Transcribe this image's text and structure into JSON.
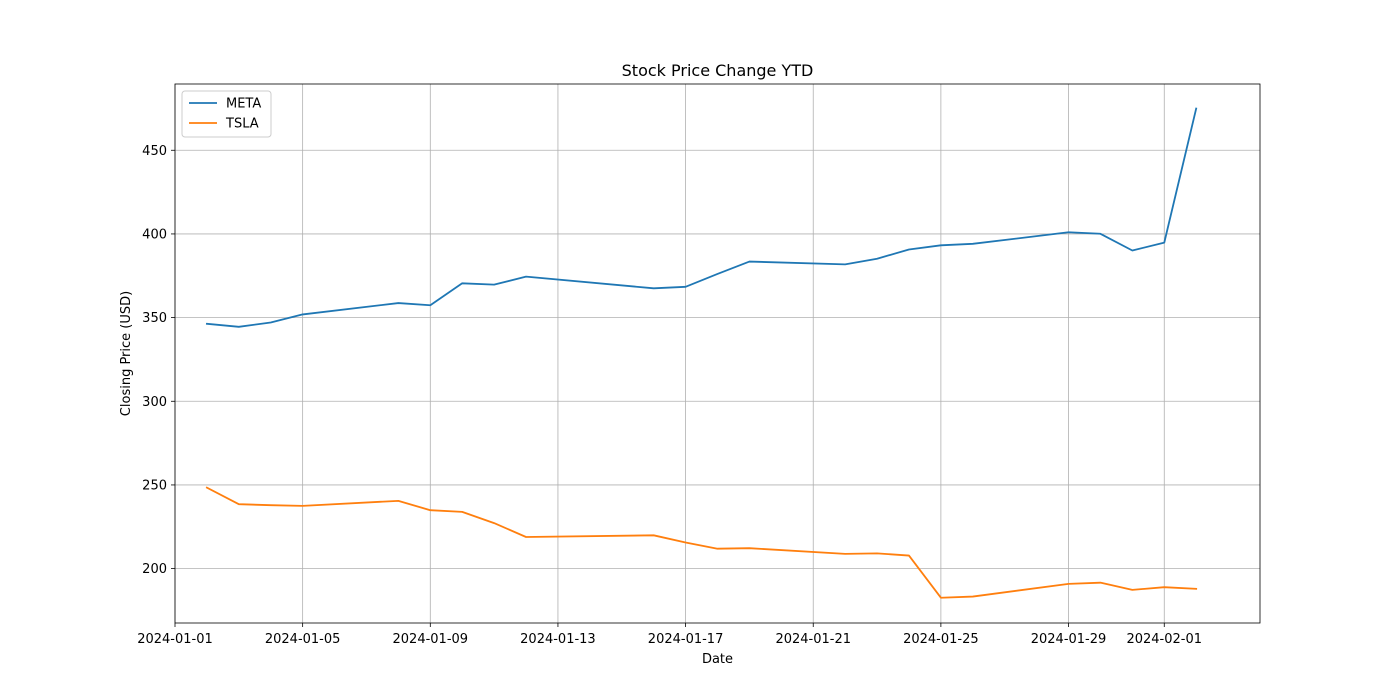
{
  "chart_data": {
    "type": "line",
    "title": "Stock Price Change YTD",
    "xlabel": "Date",
    "ylabel": "Closing Price (USD)",
    "grid": true,
    "legend_position": "top-left",
    "x_range": [
      "2024-01-01",
      "2024-02-04"
    ],
    "y_range": [
      167.5,
      489.6
    ],
    "x_ticks": [
      "2024-01-01",
      "2024-01-05",
      "2024-01-09",
      "2024-01-13",
      "2024-01-17",
      "2024-01-21",
      "2024-01-25",
      "2024-01-29",
      "2024-02-01"
    ],
    "y_ticks": [
      200,
      250,
      300,
      350,
      400,
      450
    ],
    "x": [
      "2024-01-02",
      "2024-01-03",
      "2024-01-04",
      "2024-01-05",
      "2024-01-08",
      "2024-01-09",
      "2024-01-10",
      "2024-01-11",
      "2024-01-12",
      "2024-01-16",
      "2024-01-17",
      "2024-01-18",
      "2024-01-19",
      "2024-01-22",
      "2024-01-23",
      "2024-01-24",
      "2024-01-25",
      "2024-01-26",
      "2024-01-29",
      "2024-01-30",
      "2024-01-31",
      "2024-02-01",
      "2024-02-02"
    ],
    "series": [
      {
        "name": "META",
        "color": "#1f77b4",
        "values": [
          346.3,
          344.5,
          347.1,
          351.9,
          358.7,
          357.4,
          370.5,
          369.7,
          374.5,
          367.5,
          368.4,
          376.1,
          383.5,
          381.8,
          385.2,
          390.7,
          393.2,
          394.1,
          401.0,
          400.1,
          390.1,
          394.8,
          474.9
        ]
      },
      {
        "name": "TSLA",
        "color": "#ff7f0e",
        "values": [
          248.4,
          238.5,
          237.9,
          237.5,
          240.5,
          234.9,
          233.9,
          227.2,
          218.9,
          219.9,
          215.6,
          211.9,
          212.2,
          208.8,
          209.1,
          207.8,
          182.6,
          183.3,
          190.9,
          191.6,
          187.3,
          188.9,
          187.9
        ]
      }
    ]
  }
}
